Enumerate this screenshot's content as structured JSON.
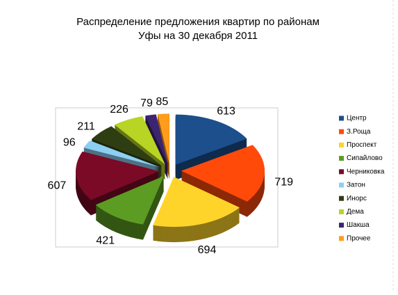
{
  "chart_data": {
    "type": "pie",
    "title": "Распределение предложения  квартир по районам Уфы на 30 декабря 2011",
    "categories": [
      "Центр",
      "З.Роща",
      "Проспект",
      "Сипайлово",
      "Черниковка",
      "Затон",
      "Инорс",
      "Дема",
      "Шакша",
      "Прочее"
    ],
    "values": [
      613,
      719,
      694,
      421,
      607,
      96,
      211,
      226,
      79,
      85
    ],
    "colors": [
      "#1c4f8c",
      "#ff4a0a",
      "#ffd42a",
      "#5d9c22",
      "#7a0a26",
      "#8ccff2",
      "#2f3d12",
      "#b8d424",
      "#3d2470",
      "#ff9c1c"
    ],
    "legend": "right"
  }
}
